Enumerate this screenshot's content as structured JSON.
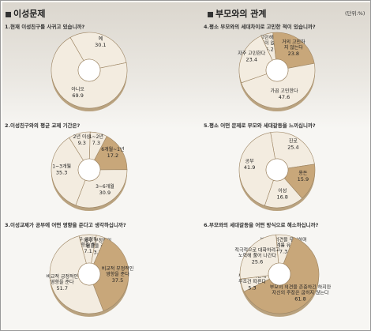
{
  "sections": {
    "left": "이성문제",
    "right": "부모와의 관계",
    "unit": "(단위:%)"
  },
  "chart_data": [
    {
      "type": "pie",
      "id": "c1",
      "question": "1.현재 이성친구를 사귀고 있습니까?",
      "slices": [
        {
          "label": "예",
          "value": 30.1
        },
        {
          "label": "아니오",
          "value": 69.9
        }
      ]
    },
    {
      "type": "pie",
      "id": "c2",
      "question": "2.이성친구와의 평균 교제 기간은?",
      "slices": [
        {
          "label": "2년 이상",
          "value": 9.3
        },
        {
          "label": "1~2년",
          "value": 7.3
        },
        {
          "label": "6개월~1년",
          "value": 17.2
        },
        {
          "label": "3~6개월",
          "value": 30.9
        },
        {
          "label": "1~3개월",
          "value": 35.3
        }
      ]
    },
    {
      "type": "pie",
      "id": "c3",
      "question": "3.이성교제가 공부에 어떤 영향을 준다고 생각하십니까?",
      "slices": [
        {
          "label": "매우 긍정적인 영향을 준다",
          "value": 7.1
        },
        {
          "label": "매우 부정적인 영향을 준다",
          "value": 3.7
        },
        {
          "label": "비교적 부정적인 영향을 준다",
          "value": 37.5
        },
        {
          "label": "비교적 긍정적인 영향을 준다",
          "value": 51.7
        }
      ]
    },
    {
      "type": "pie",
      "id": "c4",
      "question": "4.평소 부모와의 세대차이로 고민한 적이 있습니까?",
      "slices": [
        {
          "label": "고민해 본 적이 없다",
          "value": 5.2
        },
        {
          "label": "거의 고민하지 않는다",
          "value": 23.8
        },
        {
          "label": "가끔 고민한다",
          "value": 47.6
        },
        {
          "label": "자주 고민한다",
          "value": 23.4
        }
      ]
    },
    {
      "type": "pie",
      "id": "c5",
      "question": "5.평소 어떤 문제로 부모와 세대갈등을 느끼십니까?",
      "slices": [
        {
          "label": "진로",
          "value": 25.4
        },
        {
          "label": "용돈",
          "value": 15.9
        },
        {
          "label": "이성",
          "value": 16.8
        },
        {
          "label": "공부",
          "value": 41.9
        }
      ]
    },
    {
      "type": "pie",
      "id": "c6",
      "question": "6.부모와의 세대갈등을 어떤 방식으로 해소하십니까?",
      "slices": [
        {
          "label": "부모의 의견을 무시하며 갈등관계를 유지한다",
          "value": 7.3
        },
        {
          "label": "부모의 의견을 존중하긴 하지만 자신의 주장은 굽히지 않는다",
          "value": 61.8
        },
        {
          "label": "부모의 의견에 무조건 따른다",
          "value": 5.3
        },
        {
          "label": "적극적으로 대화하려고 노력해 풀어 나간다",
          "value": 25.6
        }
      ]
    }
  ],
  "colors": {
    "light": "#f3ece0",
    "mid": "#e6d6bc",
    "accent": "#c8a77a",
    "text": "#222"
  }
}
